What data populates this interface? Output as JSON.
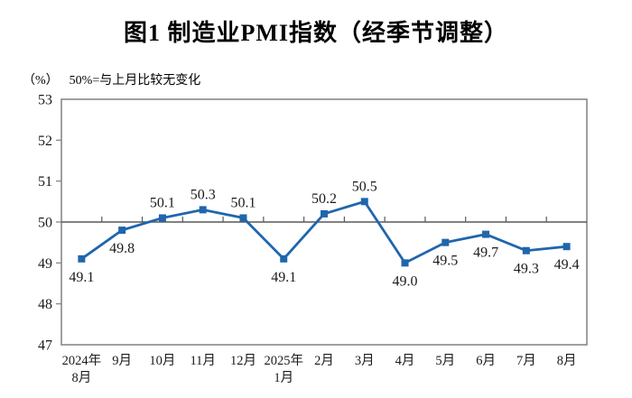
{
  "chart_data": {
    "type": "line",
    "title": "图1  制造业PMI指数（经季节调整）",
    "unit_label": "（%）",
    "note": "50%=与上月比较无变化",
    "categories": [
      "2024年\n8月",
      "9月",
      "10月",
      "11月",
      "12月",
      "2025年\n1月",
      "2月",
      "3月",
      "4月",
      "5月",
      "6月",
      "7月",
      "8月"
    ],
    "values": [
      49.1,
      49.8,
      50.1,
      50.3,
      50.1,
      49.1,
      50.2,
      50.5,
      49.0,
      49.5,
      49.7,
      49.3,
      49.4
    ],
    "data_labels": [
      "49.1",
      "49.8",
      "50.1",
      "50.3",
      "50.1",
      "49.1",
      "50.2",
      "50.5",
      "49.0",
      "49.5",
      "49.7",
      "49.3",
      "49.4"
    ],
    "ylim": [
      47,
      53
    ],
    "ytick_step": 1,
    "ytick_labels": [
      "47",
      "48",
      "49",
      "50",
      "51",
      "52",
      "53"
    ],
    "reference_line": 50,
    "grid": "off",
    "legend": "none",
    "colors": {
      "series_line": "#1f66ad",
      "marker": "#1f66ad",
      "plot_border": "#808080",
      "reference_line": "#595959",
      "text": "#1a1a1a"
    }
  }
}
